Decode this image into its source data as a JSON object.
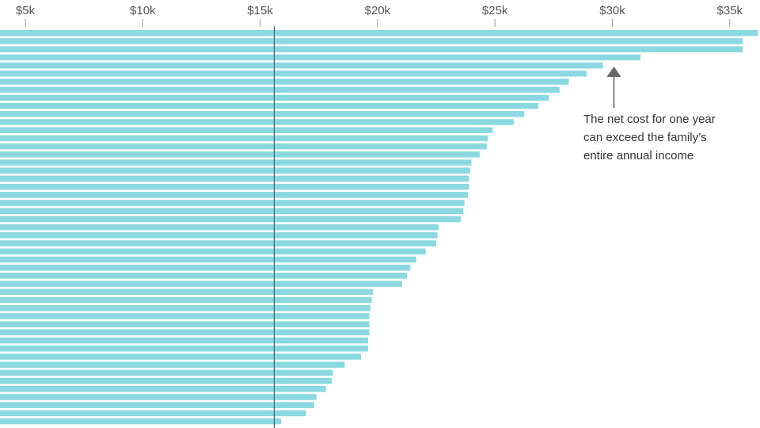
{
  "chart_data": {
    "type": "bar",
    "orientation": "horizontal",
    "title": "",
    "xlabel": "",
    "ylabel": "",
    "xlim": [
      4000,
      36200
    ],
    "x_ticks": [
      5000,
      10000,
      15000,
      20000,
      25000,
      30000,
      35000
    ],
    "x_tick_labels": [
      "$5k",
      "$10k",
      "$15k",
      "$20k",
      "$25k",
      "$30k",
      "$35k"
    ],
    "grid": false,
    "bar_color": "#8ad9e0",
    "reference_line": {
      "value": 15600,
      "color": "#3e5a64"
    },
    "values": [
      36200,
      35550,
      35550,
      31200,
      29600,
      28900,
      28150,
      27750,
      27300,
      26850,
      26250,
      25800,
      24900,
      24700,
      24650,
      24350,
      24000,
      23950,
      23900,
      23900,
      23850,
      23700,
      23650,
      23550,
      22600,
      22550,
      22500,
      22050,
      21650,
      21400,
      21250,
      21050,
      19800,
      19750,
      19700,
      19650,
      19650,
      19650,
      19600,
      19600,
      19300,
      18600,
      18100,
      18050,
      17800,
      17400,
      17300,
      16950,
      15900
    ],
    "annotation": {
      "target_value": 30000,
      "lines": [
        "The net cost for one year",
        "can exceed the family’s",
        "entire annual income"
      ],
      "arrow_color": "#666666"
    }
  }
}
